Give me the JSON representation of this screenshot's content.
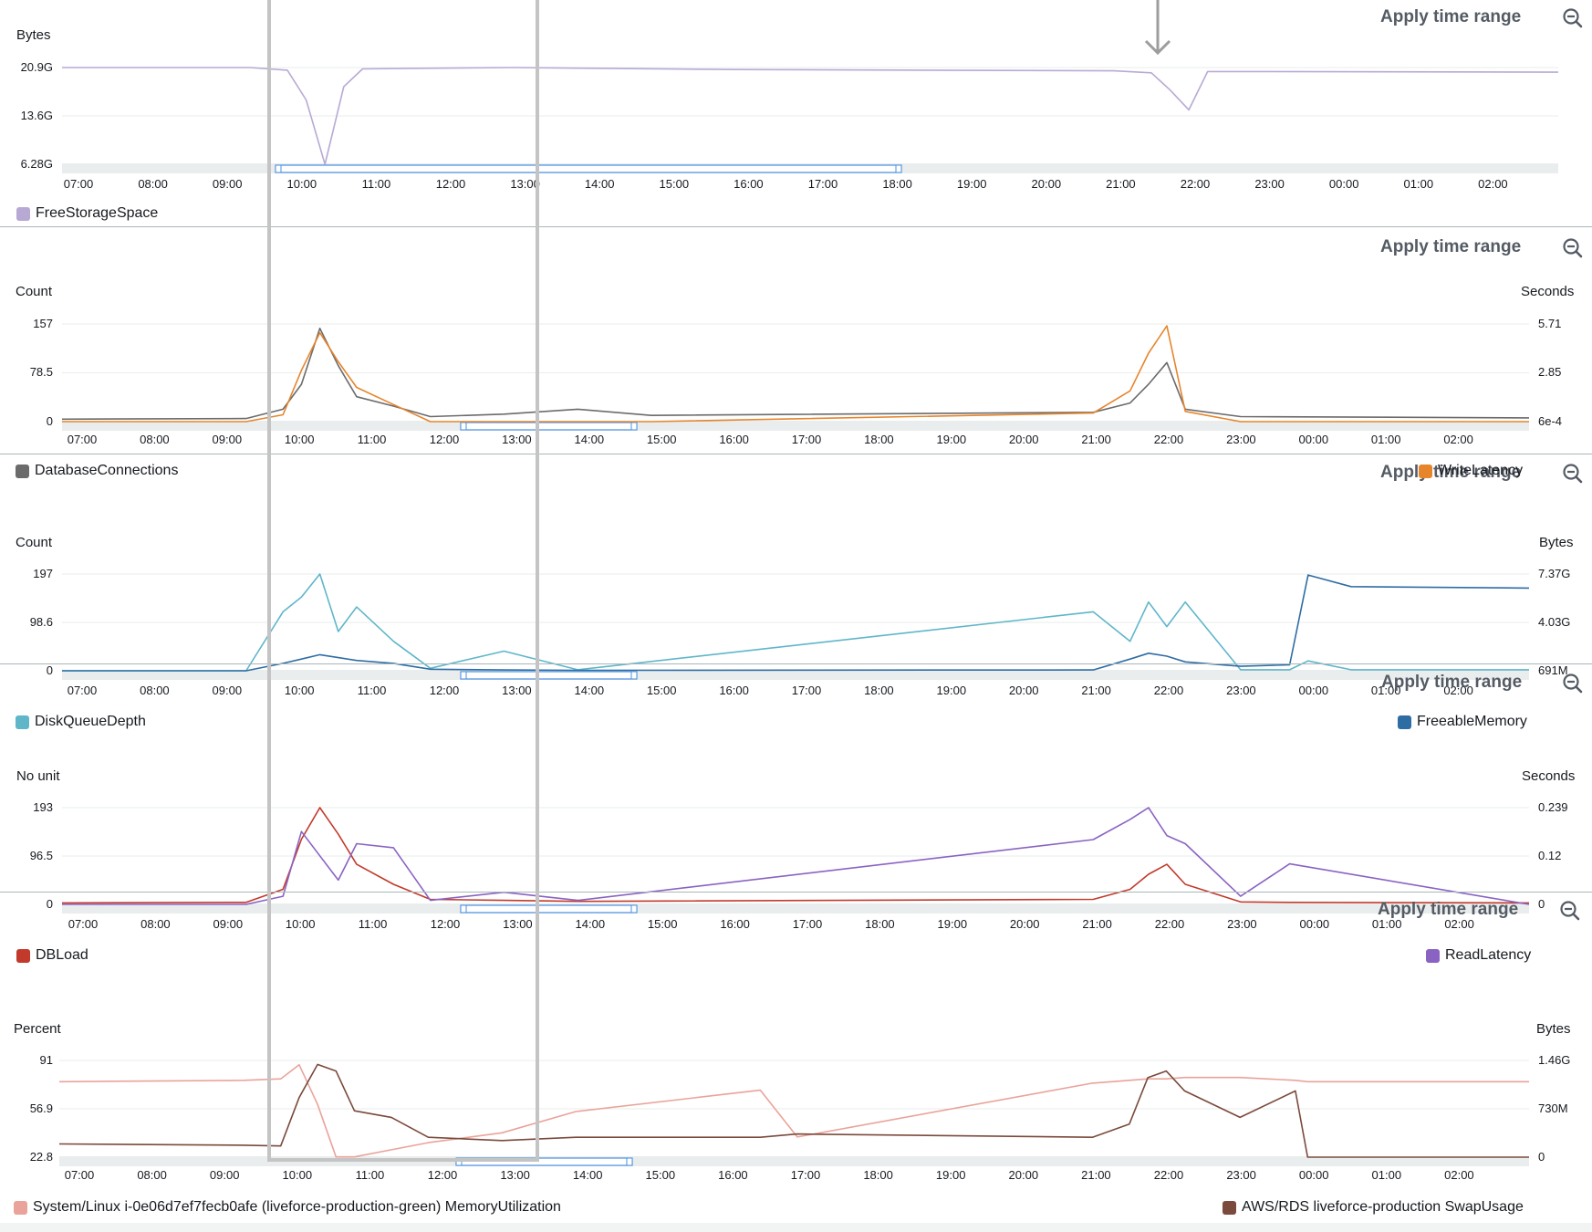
{
  "apply_label": "Apply time range",
  "time_ticks": [
    "07:00",
    "08:00",
    "09:00",
    "10:00",
    "11:00",
    "12:00",
    "13:00",
    "14:00",
    "15:00",
    "16:00",
    "17:00",
    "18:00",
    "19:00",
    "20:00",
    "21:00",
    "22:00",
    "23:00",
    "00:00",
    "01:00",
    "02:00"
  ],
  "colors": {
    "free_storage": "#b8a9d4",
    "db_connections": "#6b6b6b",
    "write_latency": "#e6852c",
    "disk_queue": "#5fb6c9",
    "freeable_memory": "#2e6da4",
    "db_load": "#c23a2b",
    "read_latency": "#8a63c2",
    "memory_util": "#eaa39a",
    "swap_usage": "#7a4a3c",
    "brush": "#4a90e2"
  },
  "panels": [
    {
      "id": "storage",
      "left_unit": "Bytes",
      "right_unit": "",
      "left_ticks": [
        "20.9G",
        "13.6G",
        "6.28G"
      ],
      "right_ticks": [],
      "legend_left": "FreeStorageSpace",
      "legend_right": ""
    },
    {
      "id": "connections",
      "left_unit": "Count",
      "right_unit": "Seconds",
      "left_ticks": [
        "157",
        "78.5",
        "0"
      ],
      "right_ticks": [
        "5.71",
        "2.85",
        "6e-4"
      ],
      "legend_left": "DatabaseConnections",
      "legend_right": "WriteLatency"
    },
    {
      "id": "diskqueue",
      "left_unit": "Count",
      "right_unit": "Bytes",
      "left_ticks": [
        "197",
        "98.6",
        "0"
      ],
      "right_ticks": [
        "7.37G",
        "4.03G",
        "691M"
      ],
      "legend_left": "DiskQueueDepth",
      "legend_right": "FreeableMemory"
    },
    {
      "id": "dbload",
      "left_unit": "No unit",
      "right_unit": "Seconds",
      "left_ticks": [
        "193",
        "96.5",
        "0"
      ],
      "right_ticks": [
        "0.239",
        "0.12",
        "0"
      ],
      "legend_left": "DBLoad",
      "legend_right": "ReadLatency"
    },
    {
      "id": "memory",
      "left_unit": "Percent",
      "right_unit": "Bytes",
      "left_ticks": [
        "91",
        "56.9",
        "22.8"
      ],
      "right_ticks": [
        "1.46G",
        "730M",
        "0"
      ],
      "legend_left": "System/Linux i-0e06d7ef7fecb0afe (liveforce-production-green) MemoryUtilization",
      "legend_right": "AWS/RDS liveforce-production SwapUsage"
    }
  ],
  "chart_data": [
    {
      "type": "line",
      "title": "",
      "ylabel": "Bytes",
      "ylim": [
        6.28,
        20.9
      ],
      "x": [
        "07:00",
        "09:30",
        "10:00",
        "10:15",
        "10:30",
        "10:45",
        "11:00",
        "12:00",
        "13:00",
        "16:00",
        "21:00",
        "21:30",
        "21:45",
        "22:00",
        "22:15",
        "23:00",
        "02:55"
      ],
      "series": [
        {
          "name": "FreeStorageSpace",
          "values": [
            20.9,
            20.9,
            20.5,
            16.0,
            6.28,
            18.0,
            20.7,
            20.8,
            20.9,
            20.6,
            20.4,
            20.1,
            17.5,
            14.5,
            20.3,
            20.3,
            20.2
          ]
        }
      ]
    },
    {
      "type": "line",
      "title": "",
      "ylabel": "Count",
      "ylim": [
        0,
        157
      ],
      "y2label": "Seconds",
      "y2lim": [
        0.0006,
        5.71
      ],
      "x": [
        "07:00",
        "09:30",
        "10:00",
        "10:15",
        "10:30",
        "10:45",
        "11:00",
        "11:30",
        "12:00",
        "13:00",
        "14:00",
        "15:00",
        "21:00",
        "21:30",
        "21:45",
        "22:00",
        "22:15",
        "23:00",
        "02:55"
      ],
      "series": [
        {
          "name": "DatabaseConnections",
          "values": [
            4,
            5,
            20,
            60,
            150,
            90,
            40,
            25,
            8,
            12,
            20,
            10,
            15,
            30,
            60,
            95,
            20,
            8,
            6
          ]
        },
        {
          "name": "WriteLatency",
          "values": [
            0.0006,
            0.0006,
            0.4,
            3.0,
            5.2,
            3.5,
            2.0,
            1.0,
            0.0006,
            0.0006,
            0.0006,
            0.0006,
            0.5,
            1.8,
            4.0,
            5.6,
            0.6,
            0.0006,
            0.0006
          ]
        }
      ]
    },
    {
      "type": "line",
      "title": "",
      "ylabel": "Count",
      "ylim": [
        0,
        197
      ],
      "y2label": "Bytes",
      "y2lim": [
        0.691,
        7.37
      ],
      "x": [
        "07:00",
        "09:30",
        "10:00",
        "10:15",
        "10:30",
        "10:45",
        "11:00",
        "11:30",
        "12:00",
        "13:00",
        "14:00",
        "21:00",
        "21:30",
        "21:45",
        "22:00",
        "22:15",
        "23:00",
        "23:40",
        "23:55",
        "00:30",
        "02:55"
      ],
      "series": [
        {
          "name": "DiskQueueDepth",
          "values": [
            0,
            0,
            120,
            150,
            197,
            80,
            130,
            60,
            5,
            40,
            2,
            120,
            60,
            140,
            90,
            140,
            2,
            2,
            20,
            2,
            2
          ]
        },
        {
          "name": "FreeableMemory",
          "values": [
            0.691,
            0.691,
            1.2,
            1.5,
            1.8,
            1.6,
            1.4,
            1.2,
            0.8,
            0.75,
            0.72,
            0.75,
            1.5,
            1.9,
            1.7,
            1.3,
            1.0,
            1.1,
            7.3,
            6.5,
            6.4
          ]
        }
      ]
    },
    {
      "type": "line",
      "title": "",
      "ylabel": "No unit",
      "ylim": [
        0,
        193
      ],
      "y2label": "Seconds",
      "y2lim": [
        0,
        0.239
      ],
      "x": [
        "07:00",
        "09:30",
        "10:00",
        "10:15",
        "10:30",
        "10:45",
        "11:00",
        "11:30",
        "12:00",
        "13:00",
        "14:00",
        "21:00",
        "21:30",
        "21:45",
        "22:00",
        "22:15",
        "23:00",
        "23:40",
        "02:55"
      ],
      "series": [
        {
          "name": "DBLoad",
          "values": [
            3,
            4,
            30,
            130,
            193,
            140,
            80,
            40,
            10,
            8,
            6,
            10,
            30,
            60,
            80,
            40,
            5,
            4,
            3
          ]
        },
        {
          "name": "ReadLatency",
          "values": [
            0,
            0,
            0.02,
            0.18,
            0.12,
            0.06,
            0.15,
            0.14,
            0.01,
            0.03,
            0.01,
            0.16,
            0.21,
            0.239,
            0.17,
            0.15,
            0.02,
            0.1,
            0
          ]
        }
      ]
    },
    {
      "type": "line",
      "title": "",
      "ylabel": "Percent",
      "ylim": [
        22.8,
        91
      ],
      "y2label": "Bytes",
      "y2lim": [
        0,
        1.46
      ],
      "x": [
        "07:00",
        "09:30",
        "10:00",
        "10:15",
        "10:30",
        "10:45",
        "11:00",
        "11:30",
        "12:00",
        "13:00",
        "14:00",
        "16:30",
        "17:00",
        "21:00",
        "21:30",
        "21:45",
        "22:00",
        "22:15",
        "23:00",
        "23:45",
        "23:55",
        "02:55"
      ],
      "series": [
        {
          "name": "System/Linux i-0e06d7ef7fecb0afe (liveforce-production-green) MemoryUtilization",
          "values": [
            76,
            77,
            78,
            88,
            60,
            23,
            23,
            28,
            33,
            40,
            55,
            70,
            37,
            75,
            77,
            78,
            78,
            79,
            79,
            77,
            76,
            76
          ]
        },
        {
          "name": "AWS/RDS liveforce-production SwapUsage",
          "values": [
            0.2,
            0.18,
            0.17,
            0.9,
            1.4,
            1.3,
            0.7,
            0.6,
            0.3,
            0.25,
            0.3,
            0.3,
            0.35,
            0.3,
            0.5,
            1.2,
            1.3,
            1.0,
            0.6,
            1.0,
            0.0,
            0.0
          ]
        }
      ]
    }
  ]
}
